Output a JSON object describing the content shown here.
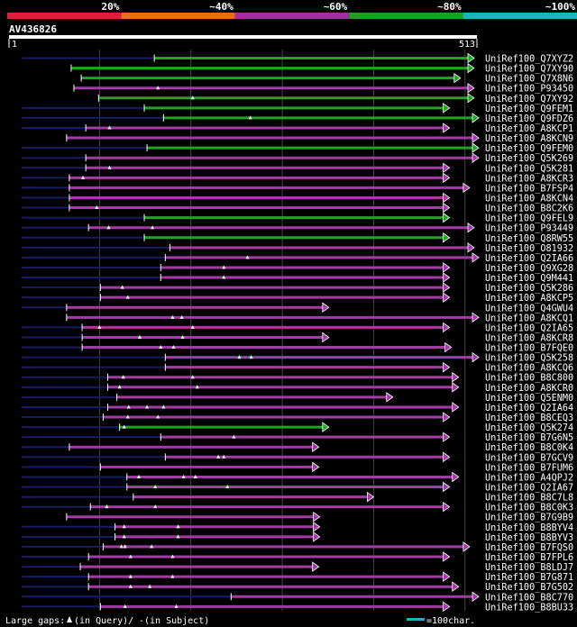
{
  "chart_data": {
    "type": "alignment-overview",
    "query_id": "AV436826",
    "query_length": 513,
    "scale": {
      "start_label": "1",
      "end_label": "513"
    },
    "identity_legend": [
      {
        "label": "20%",
        "color": "#e01e3c"
      },
      {
        "label": "~40%",
        "color": "#e07020"
      },
      {
        "label": "~60%",
        "color": "#a030a0"
      },
      {
        "label": "~80%",
        "color": "#1ea01e"
      },
      {
        "label": "~100%",
        "color": "#20b0c0"
      }
    ],
    "footer": {
      "gaps_prefix": "Large gaps:",
      "gaps_query": "(in Query)/",
      "gaps_subject_marker": "-",
      "gaps_subject": " (in Subject)",
      "scale_label": "=100char.",
      "scale_bar_color": "#20b0c0"
    },
    "hits": [
      {
        "name": "UniRef100_Q7XYZ2",
        "start": 160,
        "end": 510,
        "color": "green",
        "full": [
          15,
          510
        ],
        "gaps": []
      },
      {
        "name": "UniRef100_Q7XY90",
        "start": 69,
        "end": 510,
        "color": "green",
        "full": [
          69,
          510
        ],
        "gaps": []
      },
      {
        "name": "UniRef100_Q7X8N6",
        "start": 80,
        "end": 495,
        "color": "green",
        "full": [
          80,
          495
        ],
        "gaps": []
      },
      {
        "name": "UniRef100_P93450",
        "start": 72,
        "end": 510,
        "color": "purple",
        "full": [
          72,
          510
        ],
        "gaps": [
          164
        ]
      },
      {
        "name": "UniRef100_Q7XY92",
        "start": 99,
        "end": 510,
        "color": "green",
        "full": [
          99,
          510
        ],
        "gaps": [
          202
        ]
      },
      {
        "name": "UniRef100_Q9FEM1",
        "start": 149,
        "end": 483,
        "color": "green",
        "full": [
          15,
          483
        ],
        "gaps": []
      },
      {
        "name": "UniRef100_Q9FDZ6",
        "start": 170,
        "end": 515,
        "color": "green",
        "full": [
          15,
          515
        ],
        "gaps": [
          265
        ]
      },
      {
        "name": "UniRef100_A8KCP1",
        "start": 85,
        "end": 483,
        "color": "purple",
        "full": [
          15,
          483
        ],
        "gaps": [
          111
        ]
      },
      {
        "name": "UniRef100_A8KCN9",
        "start": 64,
        "end": 515,
        "color": "purple",
        "full": [
          64,
          515
        ],
        "gaps": []
      },
      {
        "name": "UniRef100_Q9FEM0",
        "start": 152,
        "end": 515,
        "color": "green",
        "full": [
          15,
          515
        ],
        "gaps": []
      },
      {
        "name": "UniRef100_Q5K269",
        "start": 85,
        "end": 515,
        "color": "purple",
        "full": [
          15,
          515
        ],
        "gaps": []
      },
      {
        "name": "UniRef100_Q5K281",
        "start": 85,
        "end": 483,
        "color": "purple",
        "full": [
          15,
          483
        ],
        "gaps": [
          111
        ]
      },
      {
        "name": "UniRef100_A8KCR3",
        "start": 67,
        "end": 483,
        "color": "purple",
        "full": [
          15,
          483
        ],
        "gaps": [
          82
        ]
      },
      {
        "name": "UniRef100_B7FSP4",
        "start": 67,
        "end": 505,
        "color": "purple",
        "full": [
          15,
          505
        ],
        "gaps": []
      },
      {
        "name": "UniRef100_A8KCN4",
        "start": 67,
        "end": 483,
        "color": "purple",
        "full": [
          15,
          483
        ],
        "gaps": []
      },
      {
        "name": "UniRef100_B8C2K6",
        "start": 67,
        "end": 483,
        "color": "purple",
        "full": [
          15,
          483
        ],
        "gaps": [
          97
        ]
      },
      {
        "name": "UniRef100_Q9FEL9",
        "start": 149,
        "end": 483,
        "color": "green",
        "full": [
          15,
          483
        ],
        "gaps": []
      },
      {
        "name": "UniRef100_P93449",
        "start": 88,
        "end": 510,
        "color": "purple",
        "full": [
          15,
          510
        ],
        "gaps": [
          110,
          158
        ]
      },
      {
        "name": "UniRef100_Q8RW55",
        "start": 149,
        "end": 483,
        "color": "green",
        "full": [
          15,
          483
        ],
        "gaps": []
      },
      {
        "name": "UniRef100_O81932",
        "start": 177,
        "end": 510,
        "color": "purple",
        "full": [
          15,
          510
        ],
        "gaps": []
      },
      {
        "name": "UniRef100_Q2IA66",
        "start": 172,
        "end": 515,
        "color": "purple",
        "full": [
          15,
          515
        ],
        "gaps": [
          262
        ]
      },
      {
        "name": "UniRef100_Q9XG28",
        "start": 167,
        "end": 483,
        "color": "purple",
        "full": [
          15,
          483
        ],
        "gaps": [
          236
        ]
      },
      {
        "name": "UniRef100_Q9M441",
        "start": 167,
        "end": 483,
        "color": "purple",
        "full": [
          15,
          483
        ],
        "gaps": [
          236
        ]
      },
      {
        "name": "UniRef100_Q5K286",
        "start": 101,
        "end": 483,
        "color": "purple",
        "full": [
          15,
          483
        ],
        "gaps": [
          125
        ]
      },
      {
        "name": "UniRef100_A8KCP5",
        "start": 101,
        "end": 483,
        "color": "purple",
        "full": [
          15,
          483
        ],
        "gaps": [
          131
        ]
      },
      {
        "name": "UniRef100_Q4GWU4",
        "start": 64,
        "end": 351,
        "color": "purple",
        "full": [
          15,
          351
        ],
        "gaps": []
      },
      {
        "name": "UniRef100_A8KCQ1",
        "start": 64,
        "end": 515,
        "color": "purple",
        "full": [
          64,
          515
        ],
        "gaps": [
          180,
          190
        ]
      },
      {
        "name": "UniRef100_Q2IA65",
        "start": 81,
        "end": 483,
        "color": "purple",
        "full": [
          15,
          483
        ],
        "gaps": [
          100,
          202
        ]
      },
      {
        "name": "UniRef100_A8KCR8",
        "start": 81,
        "end": 351,
        "color": "purple",
        "full": [
          15,
          351
        ],
        "gaps": [
          144,
          191
        ]
      },
      {
        "name": "UniRef100_B7FQE0",
        "start": 81,
        "end": 485,
        "color": "purple",
        "full": [
          15,
          485
        ],
        "gaps": [
          167,
          181
        ]
      },
      {
        "name": "UniRef100_Q5K258",
        "start": 172,
        "end": 515,
        "color": "purple",
        "full": [
          15,
          515
        ],
        "gaps": [
          253,
          266
        ]
      },
      {
        "name": "UniRef100_A8KCQ6",
        "start": 172,
        "end": 483,
        "color": "purple",
        "full": [
          15,
          483
        ],
        "gaps": []
      },
      {
        "name": "UniRef100_B8C800",
        "start": 109,
        "end": 493,
        "color": "purple",
        "full": [
          15,
          493
        ],
        "gaps": [
          126,
          202
        ]
      },
      {
        "name": "UniRef100_A8KCR0",
        "start": 109,
        "end": 493,
        "color": "purple",
        "full": [
          15,
          493
        ],
        "gaps": [
          122,
          207
        ]
      },
      {
        "name": "UniRef100_Q5ENM0",
        "start": 119,
        "end": 421,
        "color": "purple",
        "full": [
          15,
          421
        ],
        "gaps": []
      },
      {
        "name": "UniRef100_Q2IA64",
        "start": 109,
        "end": 493,
        "color": "purple",
        "full": [
          15,
          493
        ],
        "gaps": [
          132,
          152,
          170
        ]
      },
      {
        "name": "UniRef100_B8CEQ3",
        "start": 104,
        "end": 483,
        "color": "purple",
        "full": [
          15,
          483
        ],
        "gaps": [
          131,
          164
        ]
      },
      {
        "name": "UniRef100_Q5K274",
        "start": 122,
        "end": 351,
        "color": "green",
        "full": [
          15,
          351
        ],
        "gaps": [
          127
        ]
      },
      {
        "name": "UniRef100_B7G6N5",
        "start": 167,
        "end": 483,
        "color": "purple",
        "full": [
          15,
          483
        ],
        "gaps": [
          247
        ]
      },
      {
        "name": "UniRef100_B8C0K4",
        "start": 67,
        "end": 340,
        "color": "purple",
        "full": [
          15,
          340
        ],
        "gaps": []
      },
      {
        "name": "UniRef100_B7GCV9",
        "start": 172,
        "end": 483,
        "color": "purple",
        "full": [
          15,
          483
        ],
        "gaps": [
          230,
          236
        ]
      },
      {
        "name": "UniRef100_B7FUM6",
        "start": 101,
        "end": 340,
        "color": "purple",
        "full": [
          15,
          340
        ],
        "gaps": []
      },
      {
        "name": "UniRef100_A4QPJ2",
        "start": 130,
        "end": 493,
        "color": "purple",
        "full": [
          15,
          493
        ],
        "gaps": [
          143,
          192,
          205
        ]
      },
      {
        "name": "UniRef100_Q2IA67",
        "start": 130,
        "end": 483,
        "color": "purple",
        "full": [
          15,
          483
        ],
        "gaps": [
          161,
          240
        ]
      },
      {
        "name": "UniRef100_B8C7L8",
        "start": 137,
        "end": 400,
        "color": "purple",
        "full": [
          15,
          400
        ],
        "gaps": []
      },
      {
        "name": "UniRef100_B8C0K3",
        "start": 90,
        "end": 483,
        "color": "purple",
        "full": [
          15,
          483
        ],
        "gaps": [
          108,
          161
        ]
      },
      {
        "name": "UniRef100_B7G9B9",
        "start": 64,
        "end": 341,
        "color": "purple",
        "full": [
          64,
          341
        ],
        "gaps": []
      },
      {
        "name": "UniRef100_B8BYV4",
        "start": 117,
        "end": 341,
        "color": "purple",
        "full": [
          15,
          341
        ],
        "gaps": [
          127,
          186
        ]
      },
      {
        "name": "UniRef100_B8BYV3",
        "start": 117,
        "end": 341,
        "color": "purple",
        "full": [
          15,
          341
        ],
        "gaps": [
          127,
          186
        ]
      },
      {
        "name": "UniRef100_B7FQS0",
        "start": 104,
        "end": 505,
        "color": "purple",
        "full": [
          15,
          505
        ],
        "gaps": [
          124,
          128,
          157
        ]
      },
      {
        "name": "UniRef100_B7FPL6",
        "start": 88,
        "end": 483,
        "color": "purple",
        "full": [
          15,
          483
        ],
        "gaps": [
          134,
          180
        ]
      },
      {
        "name": "UniRef100_B8LDJ7",
        "start": 79,
        "end": 340,
        "color": "purple",
        "full": [
          15,
          340
        ],
        "gaps": []
      },
      {
        "name": "UniRef100_B7G871",
        "start": 88,
        "end": 483,
        "color": "purple",
        "full": [
          15,
          483
        ],
        "gaps": [
          134,
          180
        ]
      },
      {
        "name": "UniRef100_B7G502",
        "start": 88,
        "end": 493,
        "color": "purple",
        "full": [
          15,
          493
        ],
        "gaps": [
          134,
          155
        ]
      },
      {
        "name": "UniRef100_B8C770",
        "start": 244,
        "end": 515,
        "color": "purple",
        "full": [
          15,
          515
        ],
        "gaps": []
      },
      {
        "name": "UniRef100_B8BU33",
        "start": 101,
        "end": 483,
        "color": "purple",
        "full": [
          15,
          483
        ],
        "gaps": [
          128,
          184
        ]
      }
    ]
  }
}
